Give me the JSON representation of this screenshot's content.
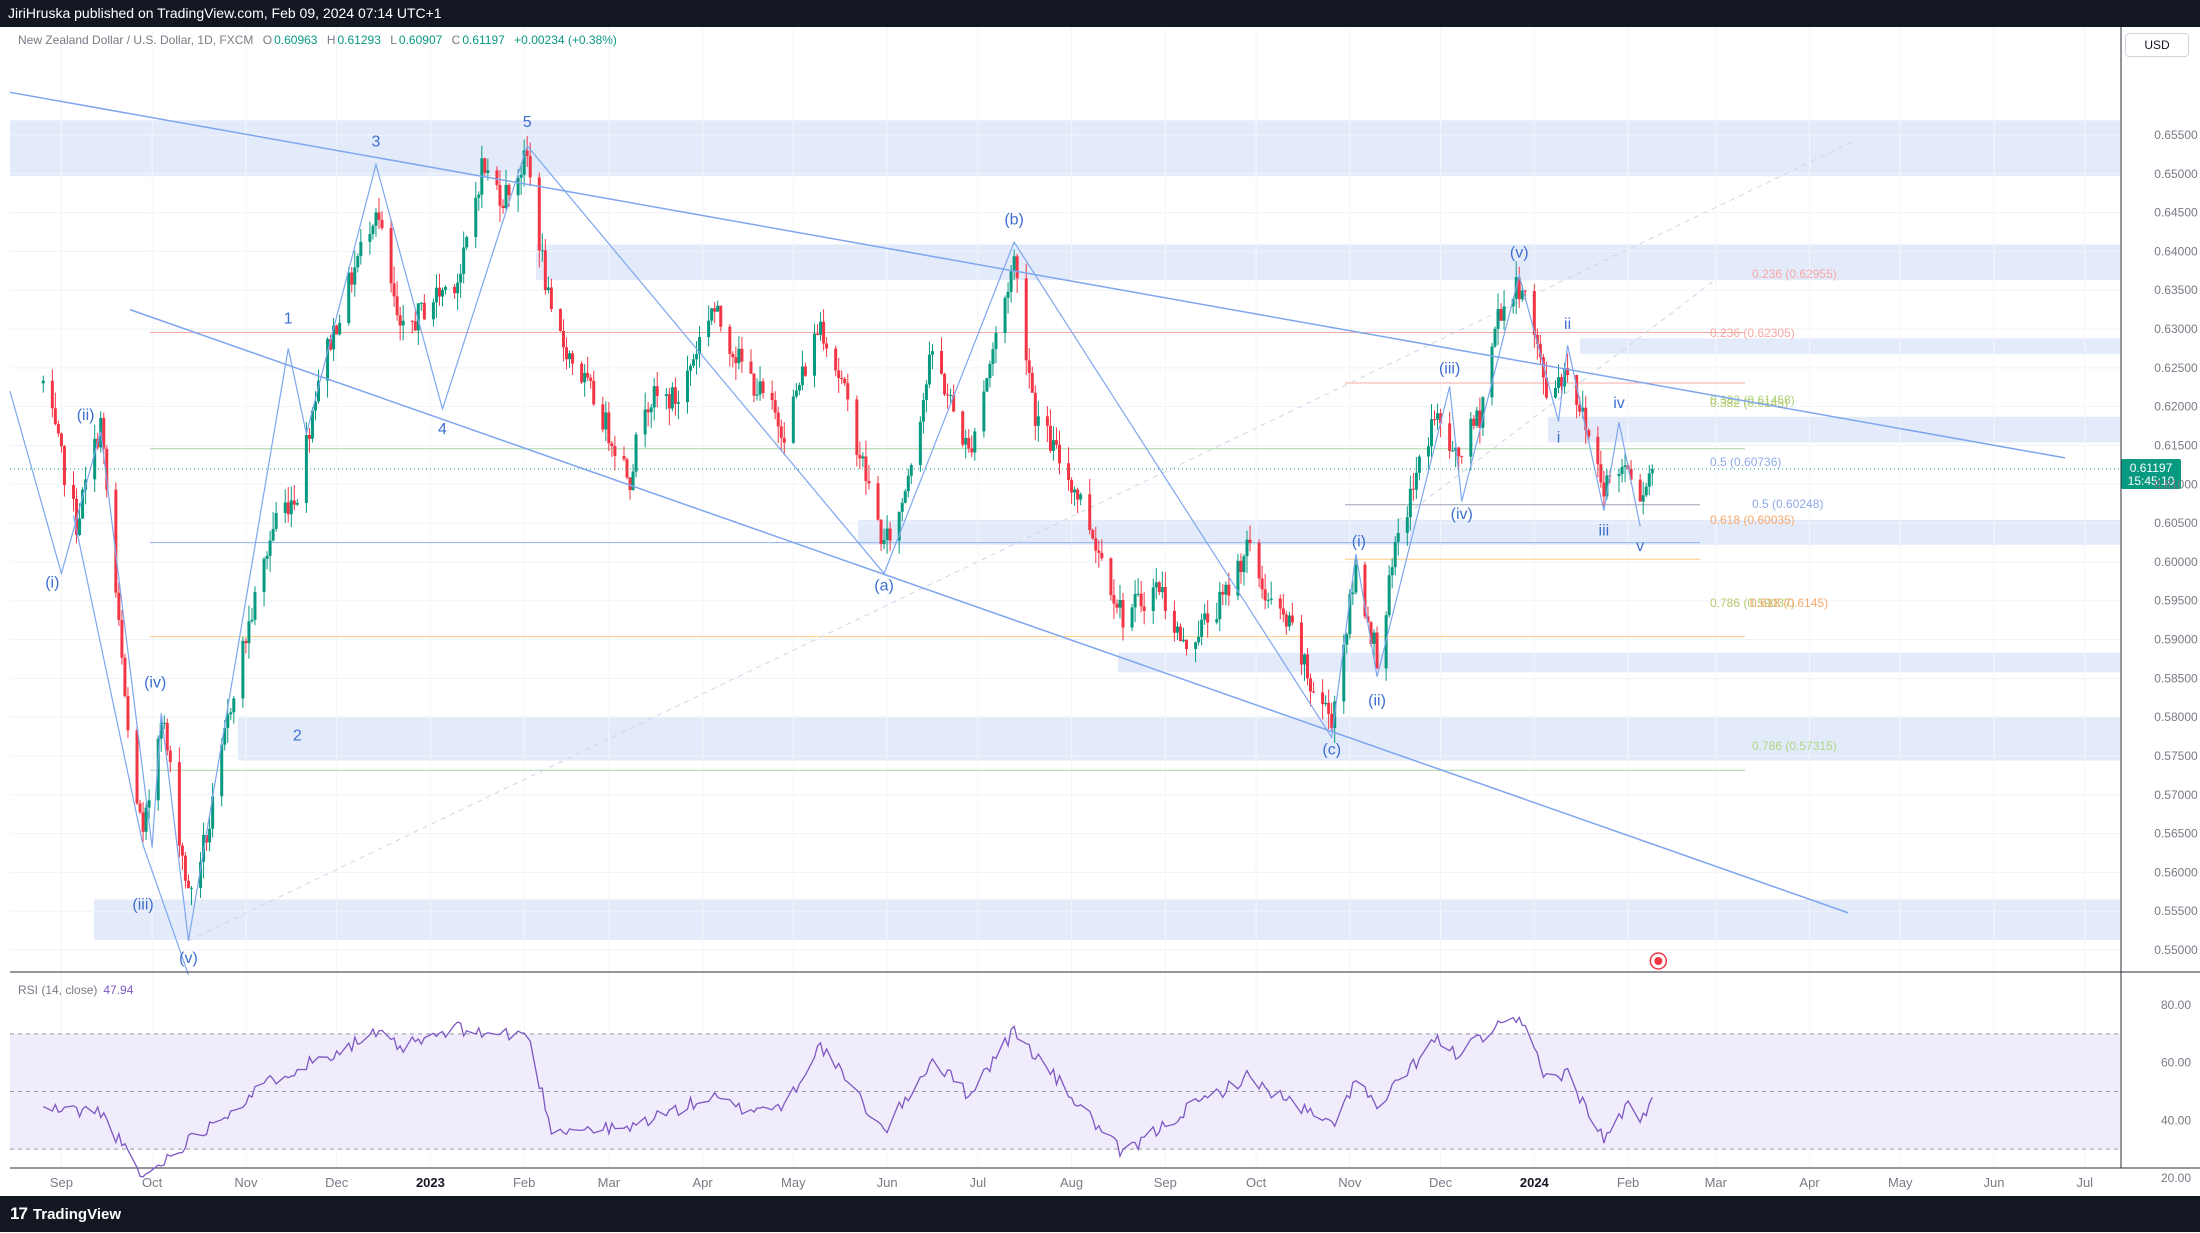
{
  "header": {
    "publisher_text": "JiriHruska published on TradingView.com, Feb 09, 2024 07:14 UTC+1"
  },
  "footer": {
    "brand": "TradingView",
    "logo_glyph": "17"
  },
  "symbol": {
    "title": "New Zealand Dollar / U.S. Dollar, 1D, FXCM",
    "open_label": "O",
    "open": "0.60963",
    "high_label": "H",
    "high": "0.61293",
    "low_label": "L",
    "low": "0.60907",
    "close_label": "C",
    "close": "0.61197",
    "change": "+0.00234 (+0.38%)"
  },
  "currency_button": "USD",
  "last_price": {
    "value": "0.61197",
    "countdown": "15:45:10"
  },
  "rsi": {
    "label": "RSI (14, close)",
    "value": "47.94"
  },
  "colors": {
    "up": "#089981",
    "down": "#f23645",
    "wave": "#5b8def",
    "zone": "#e3ebfb",
    "rsi": "#7e57c2",
    "rsi_band": "#f1ecfb",
    "fib_red": "#f7a7a3",
    "fib_green": "#a5d6a7",
    "fib_orange": "#ffcc80",
    "fib_blue": "#90b3f0"
  },
  "chart_data": [
    {
      "type": "candlestick",
      "title": "New Zealand Dollar / U.S. Dollar, 1D, FXCM",
      "xlabel": "",
      "ylabel": "",
      "ylim": [
        0.545,
        0.659
      ],
      "y_ticks": [
        "0.55000",
        "0.55500",
        "0.56000",
        "0.56500",
        "0.57000",
        "0.57500",
        "0.58000",
        "0.58500",
        "0.59000",
        "0.59500",
        "0.60000",
        "0.60500",
        "0.61000",
        "0.61500",
        "0.62000",
        "0.62500",
        "0.63000",
        "0.63500",
        "0.64000",
        "0.64500",
        "0.65000",
        "0.65500"
      ],
      "x_ticks": [
        "Sep",
        "Oct",
        "Nov",
        "Dec",
        "2023",
        "Feb",
        "Mar",
        "Apr",
        "May",
        "Jun",
        "Jul",
        "Aug",
        "Sep",
        "Oct",
        "Nov",
        "Dec",
        "2024",
        "Feb",
        "Mar",
        "Apr",
        "May",
        "Jun",
        "Jul"
      ],
      "price_path": [
        [
          "2022-08-26",
          0.623
        ],
        [
          "2022-09-06",
          0.605
        ],
        [
          "2022-09-14",
          0.618
        ],
        [
          "2022-09-23",
          0.578
        ],
        [
          "2022-09-28",
          0.564
        ],
        [
          "2022-10-04",
          0.581
        ],
        [
          "2022-10-13",
          0.557
        ],
        [
          "2022-10-20",
          0.566
        ],
        [
          "2022-10-28",
          0.584
        ],
        [
          "2022-11-11",
          0.606
        ],
        [
          "2022-11-18",
          0.609
        ],
        [
          "2022-11-25",
          0.624
        ],
        [
          "2022-12-14",
          0.646
        ],
        [
          "2022-12-22",
          0.629
        ],
        [
          "2023-01-02",
          0.634
        ],
        [
          "2023-01-11",
          0.637
        ],
        [
          "2023-01-18",
          0.651
        ],
        [
          "2023-01-25",
          0.647
        ],
        [
          "2023-02-02",
          0.652
        ],
        [
          "2023-02-10",
          0.631
        ],
        [
          "2023-02-24",
          0.621
        ],
        [
          "2023-03-08",
          0.611
        ],
        [
          "2023-03-13",
          0.621
        ],
        [
          "2023-03-24",
          0.621
        ],
        [
          "2023-04-04",
          0.633
        ],
        [
          "2023-04-13",
          0.626
        ],
        [
          "2023-04-28",
          0.617
        ],
        [
          "2023-05-10",
          0.631
        ],
        [
          "2023-05-17",
          0.623
        ],
        [
          "2023-05-31",
          0.602
        ],
        [
          "2023-06-05",
          0.606
        ],
        [
          "2023-06-16",
          0.627
        ],
        [
          "2023-06-28",
          0.614
        ],
        [
          "2023-07-13",
          0.639
        ],
        [
          "2023-07-20",
          0.619
        ],
        [
          "2023-08-04",
          0.608
        ],
        [
          "2023-08-18",
          0.593
        ],
        [
          "2023-08-30",
          0.597
        ],
        [
          "2023-09-07",
          0.589
        ],
        [
          "2023-09-20",
          0.595
        ],
        [
          "2023-09-28",
          0.602
        ],
        [
          "2023-10-05",
          0.595
        ],
        [
          "2023-10-13",
          0.591
        ],
        [
          "2023-10-19",
          0.584
        ],
        [
          "2023-10-26",
          0.58
        ],
        [
          "2023-11-03",
          0.599
        ],
        [
          "2023-11-10",
          0.588
        ],
        [
          "2023-11-17",
          0.603
        ],
        [
          "2023-11-29",
          0.619
        ],
        [
          "2023-12-06",
          0.613
        ],
        [
          "2023-12-14",
          0.619
        ],
        [
          "2023-12-20",
          0.632
        ],
        [
          "2023-12-28",
          0.636
        ],
        [
          "2024-01-05",
          0.622
        ],
        [
          "2024-01-12",
          0.625
        ],
        [
          "2024-01-24",
          0.61
        ],
        [
          "2024-02-01",
          0.613
        ],
        [
          "2024-02-05",
          0.609
        ],
        [
          "2024-02-09",
          0.612
        ]
      ],
      "key_levels": {
        "high_2023_02_02": 0.6536,
        "low_2022_10_13": 0.5512,
        "high_2023_07_13": 0.6412,
        "low_2023_05_31": 0.5985,
        "low_2023_10_26": 0.5774,
        "high_2023_12_27": 0.6369
      },
      "wave_labels": [
        "(ii)",
        "(i)",
        "(iv)",
        "(iii)",
        "(v)",
        "1",
        "2",
        "3",
        "4",
        "5",
        "(a)",
        "(b)",
        "(c)",
        "(i)",
        "(ii)",
        "(iii)",
        "(iv)",
        "(v)",
        "i",
        "ii",
        "iii",
        "iv",
        "v"
      ],
      "fib_labels": [
        "0.236 (0.62955)",
        "0.236 (0.62305)",
        "0.382 (0.61458)",
        "0.5 (0.60736)",
        "0.5 (0.60248)",
        "0.618 (0.60035)",
        "0.786 (0.59037)",
        "0.786 (0.57315)"
      ],
      "fib_labels_overlapped": [
        "0.382 (0.6145)",
        "0.618 (0.6145)"
      ]
    },
    {
      "type": "line",
      "title": "RSI (14, close)",
      "ylim": [
        15,
        85
      ],
      "y_ticks": [
        "80.00",
        "60.00",
        "40.00",
        "20.00"
      ],
      "bands": [
        30,
        50,
        70
      ],
      "last": 47.94,
      "series": [
        {
          "values": [
            [
              "2022-08-26",
              44
            ],
            [
              "2022-09-14",
              43
            ],
            [
              "2022-09-28",
              20
            ],
            [
              "2022-10-13",
              33
            ],
            [
              "2022-11-11",
              55
            ],
            [
              "2022-12-14",
              70
            ],
            [
              "2022-12-22",
              65
            ],
            [
              "2023-01-11",
              72
            ],
            [
              "2023-01-18",
              70
            ],
            [
              "2023-02-02",
              70
            ],
            [
              "2023-02-10",
              37
            ],
            [
              "2023-03-08",
              37
            ],
            [
              "2023-03-13",
              40
            ],
            [
              "2023-04-04",
              48
            ],
            [
              "2023-04-13",
              44
            ],
            [
              "2023-04-28",
              45
            ],
            [
              "2023-05-10",
              66
            ],
            [
              "2023-05-31",
              36
            ],
            [
              "2023-06-16",
              61
            ],
            [
              "2023-06-28",
              49
            ],
            [
              "2023-07-13",
              71
            ],
            [
              "2023-08-18",
              28
            ],
            [
              "2023-09-07",
              43
            ],
            [
              "2023-09-28",
              55
            ],
            [
              "2023-10-26",
              38
            ],
            [
              "2023-11-03",
              54
            ],
            [
              "2023-11-10",
              44
            ],
            [
              "2023-11-29",
              68
            ],
            [
              "2023-12-06",
              63
            ],
            [
              "2023-12-20",
              72
            ],
            [
              "2023-12-28",
              74
            ],
            [
              "2024-01-05",
              55
            ],
            [
              "2024-01-12",
              56
            ],
            [
              "2024-01-24",
              33
            ],
            [
              "2024-02-01",
              46
            ],
            [
              "2024-02-05",
              38
            ],
            [
              "2024-02-09",
              47.94
            ]
          ]
        }
      ]
    }
  ]
}
